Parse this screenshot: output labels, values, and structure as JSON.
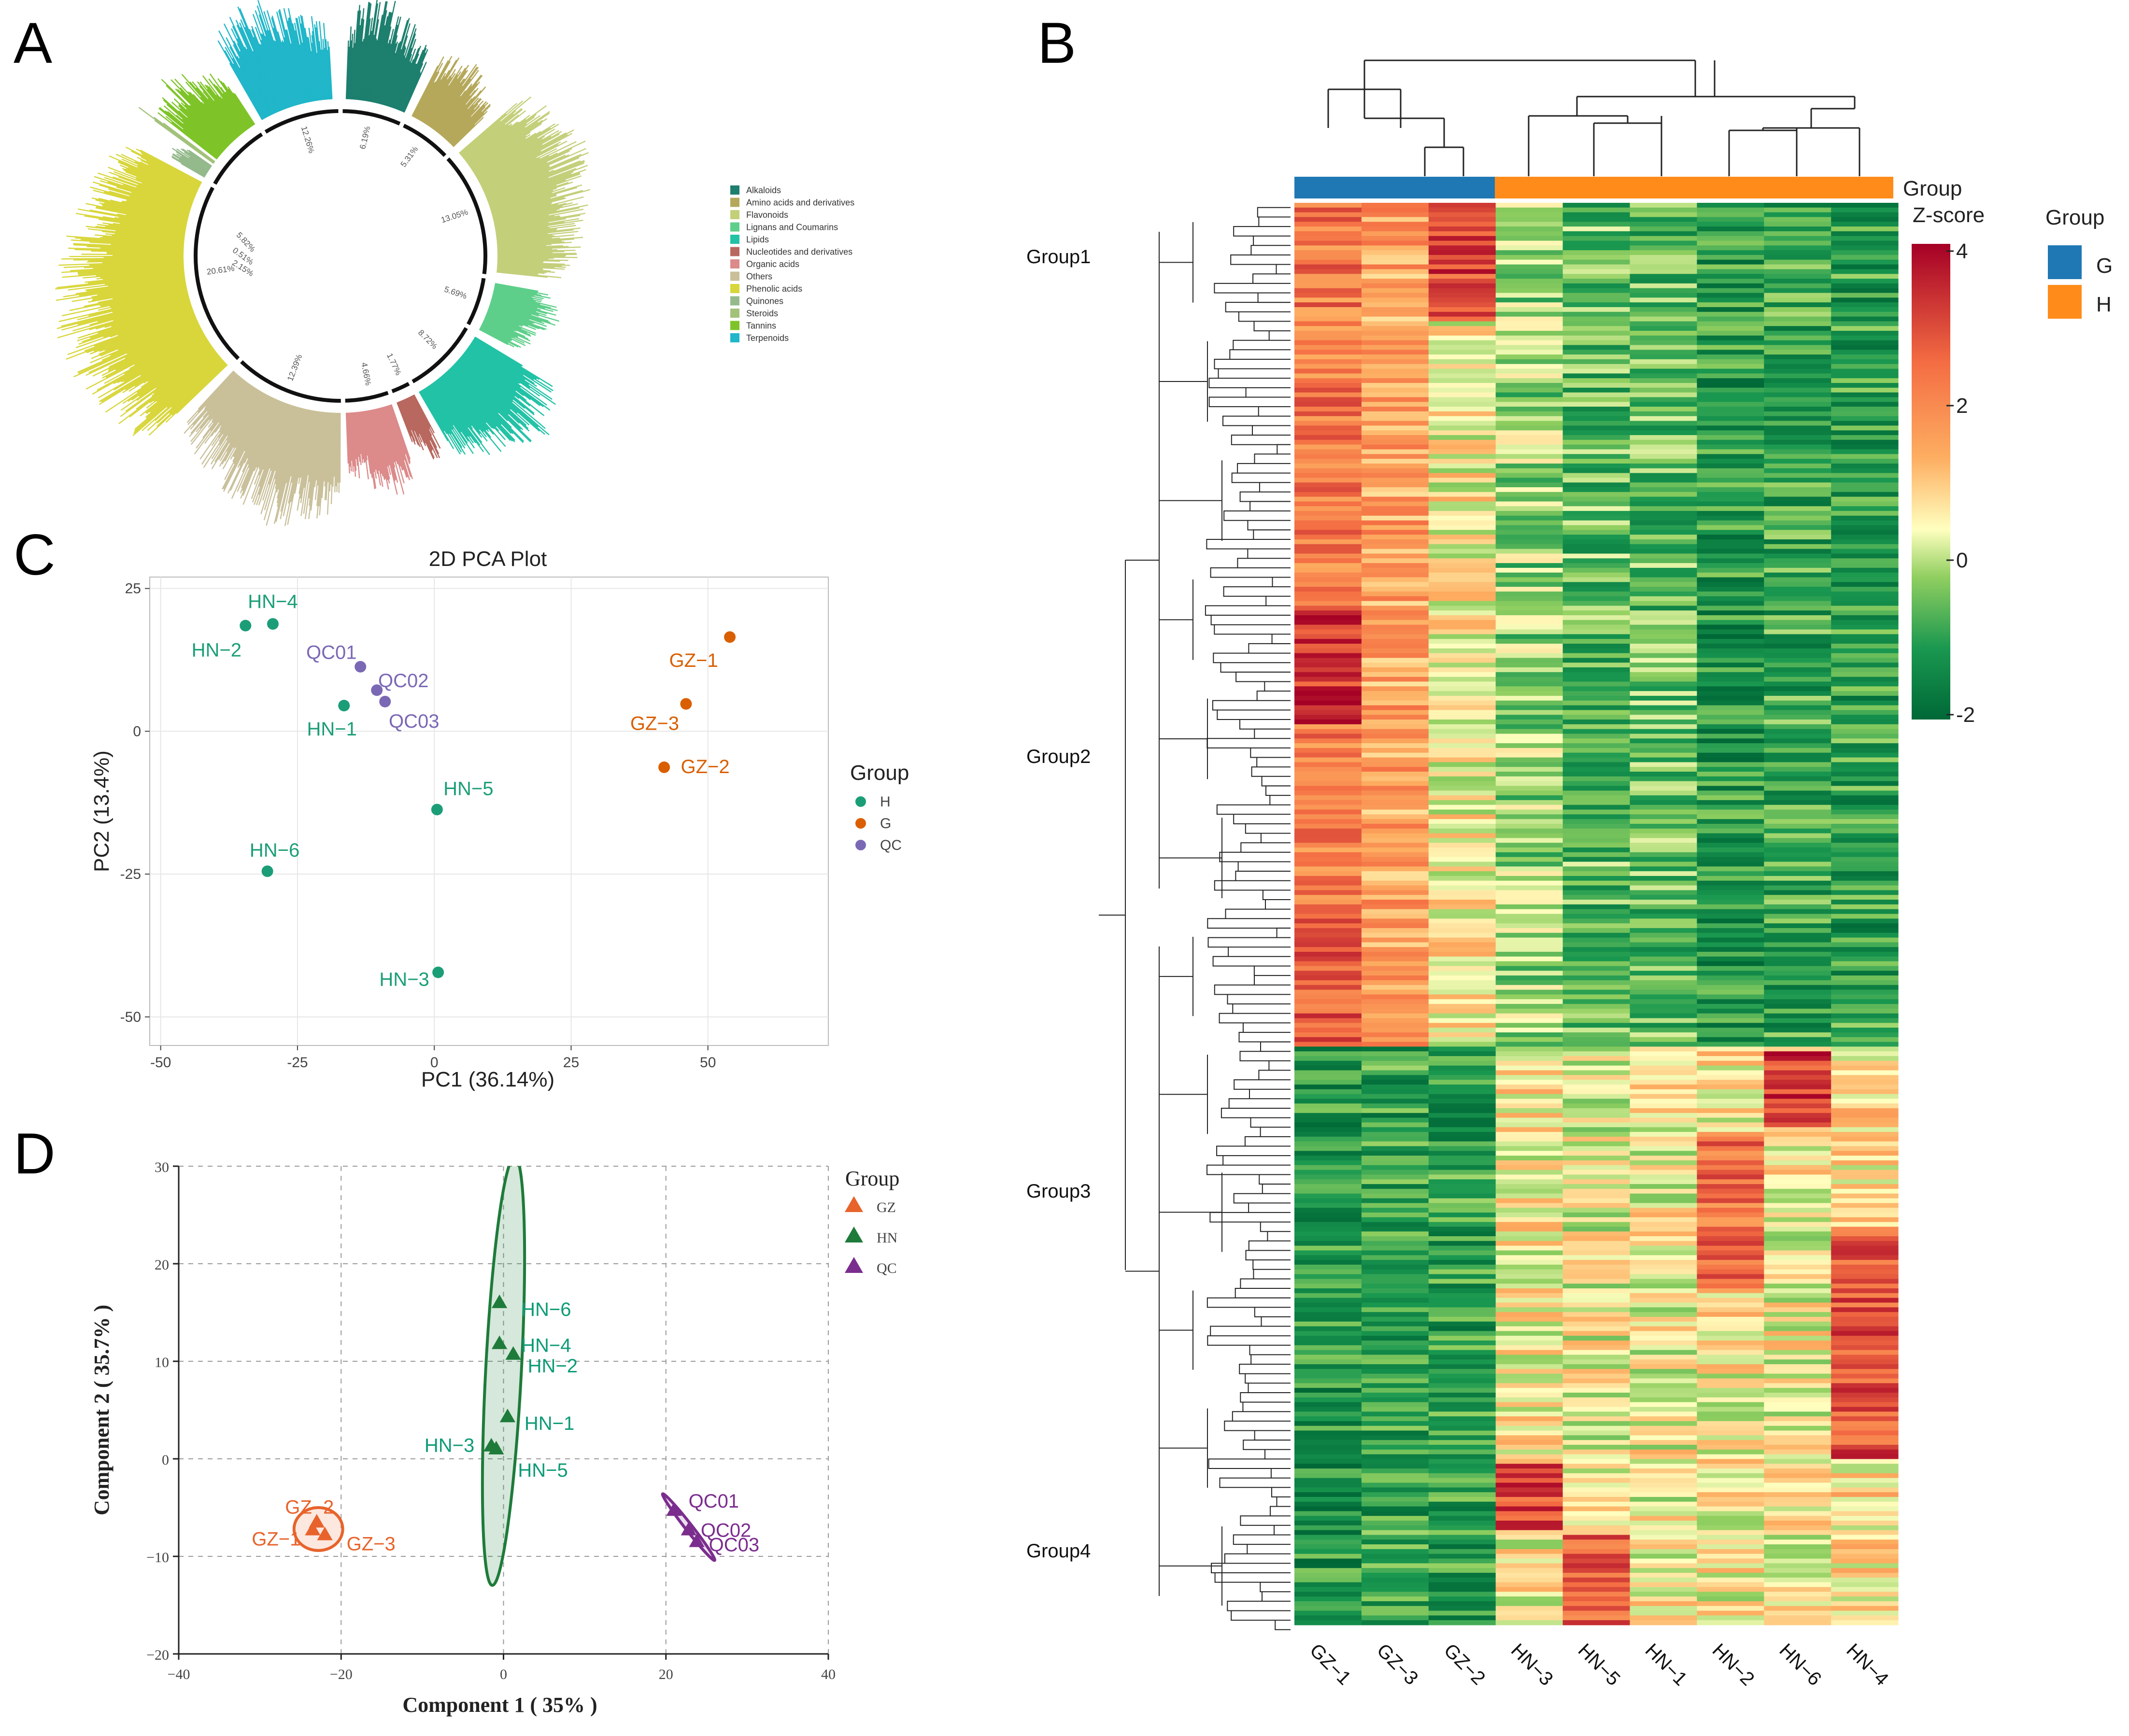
{
  "colors": {
    "H": "#1b9e77",
    "G": "#d95f02",
    "QC": "#7b68b5",
    "GZ_d": "#e8632b",
    "HN_d": "#1e7b3a",
    "QC_d": "#7b2d8e",
    "HN_text_d": "#0d9b76",
    "G_bar": "#1f78b4",
    "H_bar": "#ff8c1a"
  },
  "panels": {
    "A": "A",
    "B": "B",
    "C": "C",
    "D": "D"
  },
  "chart_data": [
    {
      "panel": "A",
      "type": "circular-bar",
      "categories": [
        {
          "name": "Alkaloids",
          "color": "#1d7f6e"
        },
        {
          "name": "Amino acids and derivatives",
          "color": "#b5a85a"
        },
        {
          "name": "Flavonoids",
          "color": "#c4cf7a"
        },
        {
          "name": "Lignans and Coumarins",
          "color": "#5ecf8a"
        },
        {
          "name": "Lipids",
          "color": "#22c2a6"
        },
        {
          "name": "Nucleotides and derivatives",
          "color": "#b8685e"
        },
        {
          "name": "Organic acids",
          "color": "#dc8a8a"
        },
        {
          "name": "Others",
          "color": "#c9c09a"
        },
        {
          "name": "Phenolic acids",
          "color": "#d8d63a"
        },
        {
          "name": "Quinones",
          "color": "#94ba8c"
        },
        {
          "name": "Steroids",
          "color": "#a2c27a"
        },
        {
          "name": "Tannins",
          "color": "#7ec428"
        },
        {
          "name": "Terpenoids",
          "color": "#21b6c9"
        }
      ],
      "percent_labels": [
        "6.19%",
        "5.31%",
        "13.05%",
        "5.69%",
        "8.72%",
        "1.77%",
        "4.66%",
        "12.39%",
        "20.61%",
        "2.15%",
        "0.51%",
        "5.82%",
        "12.26%"
      ]
    },
    {
      "panel": "B",
      "type": "heatmap",
      "columns": [
        "GZ−1",
        "GZ−3",
        "GZ−2",
        "HN−3",
        "HN−5",
        "HN−1",
        "HN−2",
        "HN−6",
        "HN−4"
      ],
      "column_groups": [
        "G",
        "G",
        "G",
        "H",
        "H",
        "H",
        "H",
        "H",
        "H"
      ],
      "row_groups": [
        "Group1",
        "Group2",
        "Group3",
        "Group4"
      ],
      "annotation_title": "Group",
      "colorbar_title": "Z-score",
      "colorbar_ticks": [
        "4",
        "2",
        "0",
        "-2"
      ],
      "colorbar_range": [
        -2,
        4
      ],
      "legend_title": "Group",
      "legend_items": [
        "G",
        "H"
      ]
    },
    {
      "panel": "C",
      "type": "scatter",
      "title": "2D PCA Plot",
      "xlabel": "PC1 (36.14%)",
      "ylabel": "PC2 (13.4%)",
      "xlim": [
        -52,
        72
      ],
      "ylim": [
        -55,
        27
      ],
      "xticks": [
        -50,
        -25,
        0,
        25,
        50
      ],
      "xtick_labels": [
        "-50",
        "-25",
        "0",
        "25",
        "50"
      ],
      "yticks": [
        25,
        0,
        -25,
        -50
      ],
      "ytick_labels": [
        "25",
        "0",
        "-25",
        "-50"
      ],
      "legend_title": "Group",
      "legend": [
        "H",
        "G",
        "QC"
      ],
      "points": [
        {
          "label": "HN−4",
          "group": "H",
          "x": -29.5,
          "y": 18.8
        },
        {
          "label": "HN−2",
          "group": "H",
          "x": -34.5,
          "y": 18.5
        },
        {
          "label": "HN−1",
          "group": "H",
          "x": -16.5,
          "y": 4.5
        },
        {
          "label": "HN−5",
          "group": "H",
          "x": 0.5,
          "y": -13.7
        },
        {
          "label": "HN−6",
          "group": "H",
          "x": -30.5,
          "y": -24.5
        },
        {
          "label": "HN−3",
          "group": "H",
          "x": 0.7,
          "y": -42.2
        },
        {
          "label": "QC01",
          "group": "QC",
          "x": -13.5,
          "y": 11.3
        },
        {
          "label": "QC02",
          "group": "QC",
          "x": -10.5,
          "y": 7.2
        },
        {
          "label": "QC03",
          "group": "QC",
          "x": -9.0,
          "y": 5.2
        },
        {
          "label": "GZ−1",
          "group": "G",
          "x": 54.0,
          "y": 16.5
        },
        {
          "label": "GZ−3",
          "group": "G",
          "x": 46.0,
          "y": 4.8
        },
        {
          "label": "GZ−2",
          "group": "G",
          "x": 42.0,
          "y": -6.3
        }
      ]
    },
    {
      "panel": "D",
      "type": "scatter",
      "xlabel": "Component 1 ( 35% )",
      "ylabel": "Component 2 ( 35.7% )",
      "xlim": [
        -40,
        40
      ],
      "ylim": [
        -20,
        30
      ],
      "xticks": [
        -40,
        -20,
        0,
        20,
        40
      ],
      "xtick_labels": [
        "−40",
        "−20",
        "0",
        "20",
        "40"
      ],
      "yticks": [
        30,
        20,
        10,
        0,
        -10,
        -20
      ],
      "ytick_labels": [
        "30",
        "20",
        "10",
        "0",
        "−10",
        "−20"
      ],
      "legend_title": "Group",
      "legend": [
        "GZ",
        "HN",
        "QC"
      ],
      "points": [
        {
          "label": "HN−6",
          "group": "HN",
          "x": -0.5,
          "y": 16.0
        },
        {
          "label": "HN−4",
          "group": "HN",
          "x": -0.5,
          "y": 11.8
        },
        {
          "label": "HN−2",
          "group": "HN",
          "x": 1.2,
          "y": 10.7
        },
        {
          "label": "HN−1",
          "group": "HN",
          "x": 0.5,
          "y": 4.3
        },
        {
          "label": "HN−3",
          "group": "HN",
          "x": -1.5,
          "y": 1.3
        },
        {
          "label": "HN−5",
          "group": "HN",
          "x": -0.9,
          "y": 1.0
        },
        {
          "label": "GZ−2",
          "group": "GZ",
          "x": -23.0,
          "y": -6.5
        },
        {
          "label": "GZ−1",
          "group": "GZ",
          "x": -23.5,
          "y": -7.3
        },
        {
          "label": "GZ−3",
          "group": "GZ",
          "x": -22.0,
          "y": -7.8
        },
        {
          "label": "QC01",
          "group": "QC",
          "x": 21.0,
          "y": -5.3
        },
        {
          "label": "QC02",
          "group": "QC",
          "x": 22.8,
          "y": -7.3
        },
        {
          "label": "QC03",
          "group": "QC",
          "x": 23.8,
          "y": -8.5
        }
      ]
    }
  ]
}
